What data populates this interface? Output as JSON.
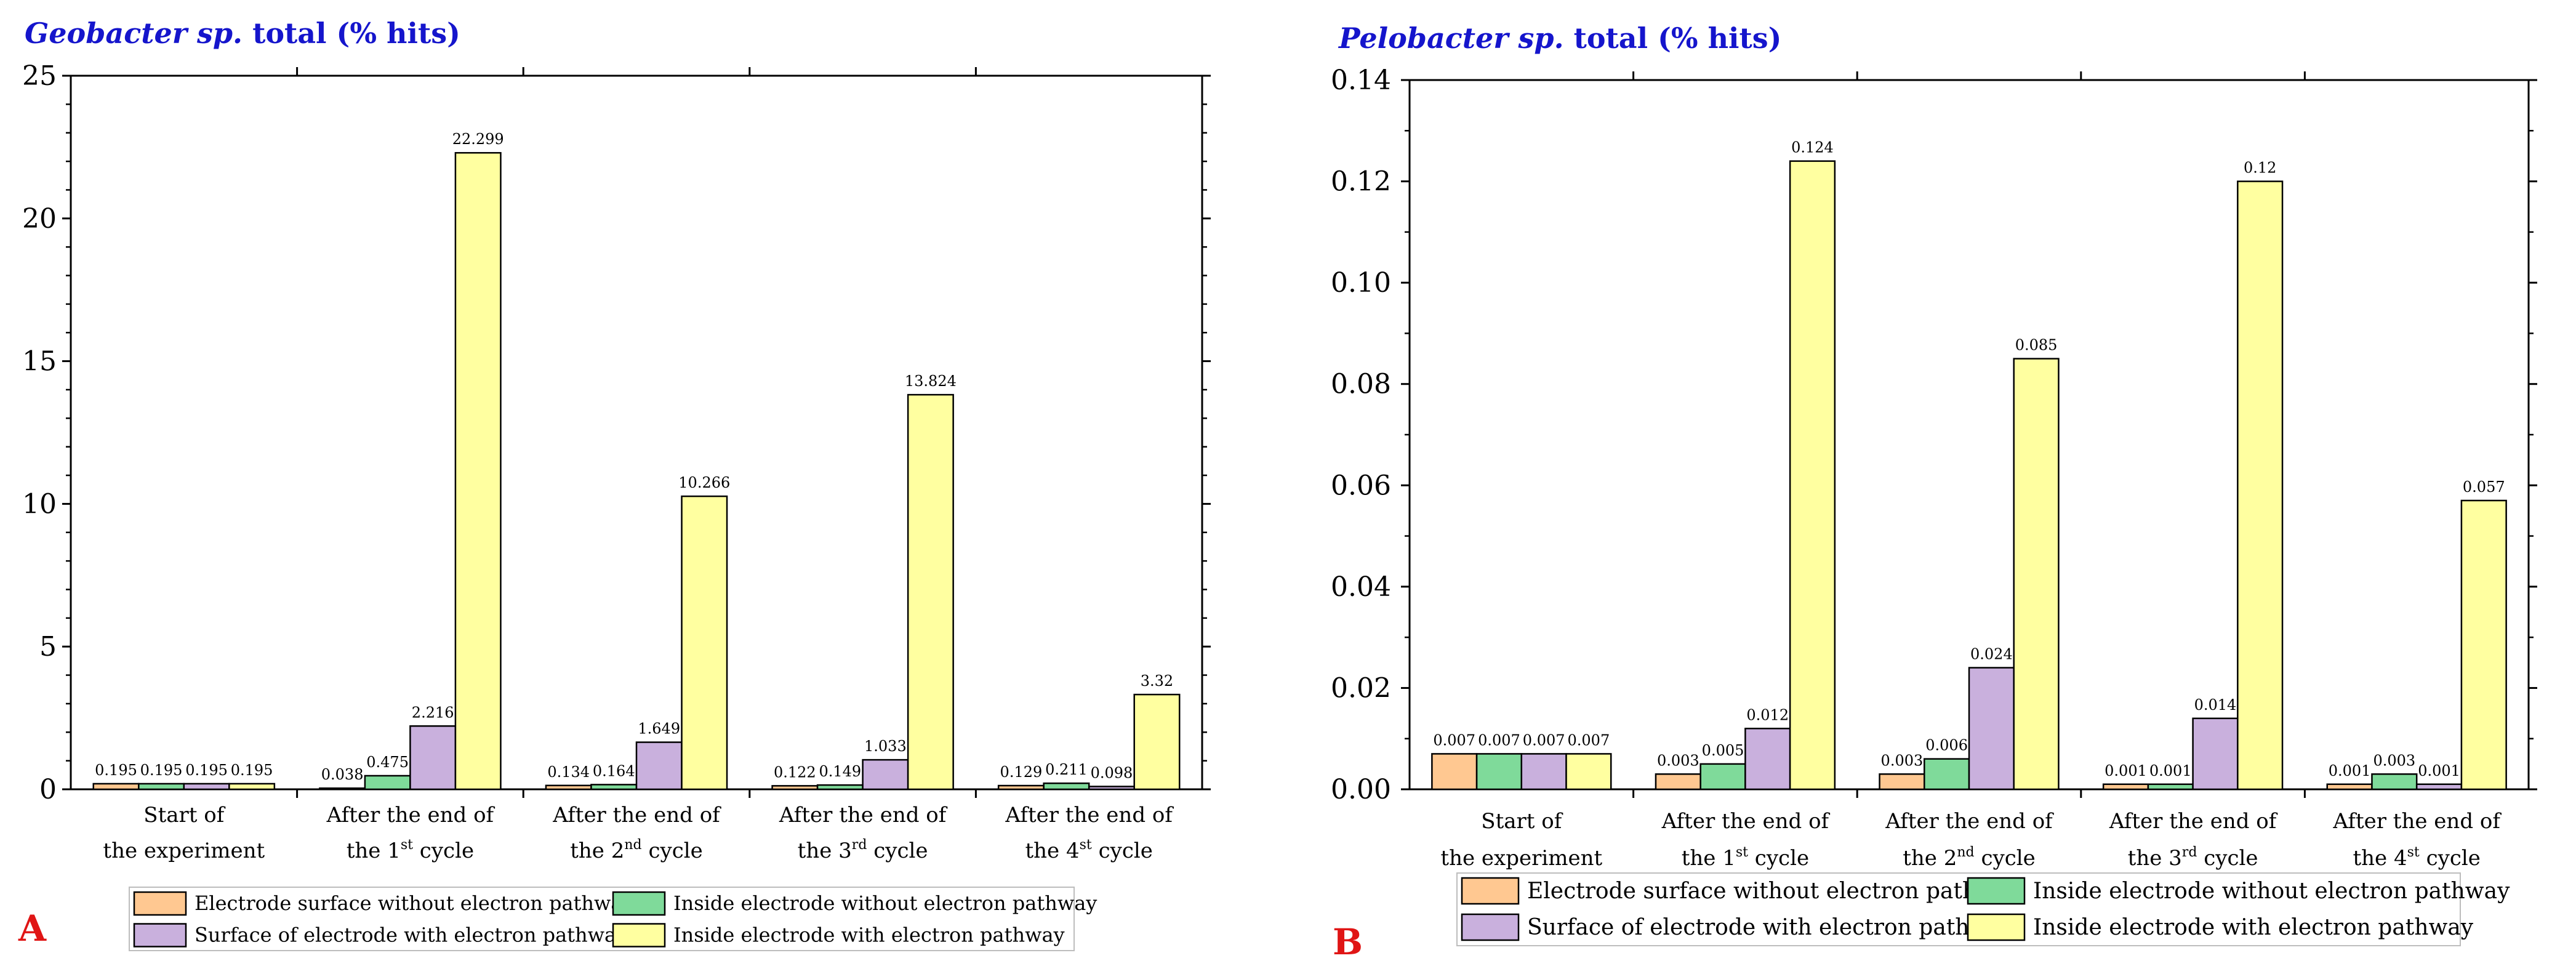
{
  "colors": {
    "series": [
      "#FFC891",
      "#7FDA9A",
      "#C9B0DD",
      "#FFFFA0"
    ],
    "title": "#1515CC",
    "panel_letter": "#E01515",
    "axis": "#000000"
  },
  "chart_data": [
    {
      "type": "bar",
      "panel": "A",
      "title_italic": "Geobacter sp.",
      "title_rest": " total (% hits)",
      "categories": [
        {
          "line1": "Start of",
          "line2_pre": "the experiment",
          "sup": "",
          "line2_post": ""
        },
        {
          "line1": "After the end of",
          "line2_pre": "the 1",
          "sup": "st",
          "line2_post": " cycle"
        },
        {
          "line1": "After the end of",
          "line2_pre": "the 2",
          "sup": "nd",
          "line2_post": " cycle"
        },
        {
          "line1": "After the end of",
          "line2_pre": "the 3",
          "sup": "rd",
          "line2_post": " cycle"
        },
        {
          "line1": "After the end of",
          "line2_pre": "the 4",
          "sup": "st",
          "line2_post": " cycle"
        }
      ],
      "series": [
        {
          "name": "Electrode surface without electron pathway",
          "values": [
            0.195,
            0.038,
            0.134,
            0.122,
            0.129
          ],
          "labels": [
            "0.195",
            "0.038",
            "0.134",
            "0.122",
            "0.129"
          ]
        },
        {
          "name": "Inside electrode without electron pathway",
          "values": [
            0.195,
            0.475,
            0.164,
            0.149,
            0.211
          ],
          "labels": [
            "0.195",
            "0.475",
            "0.164",
            "0.149",
            "0.211"
          ]
        },
        {
          "name": "Surface of electrode with electron pathway",
          "values": [
            0.195,
            2.216,
            1.649,
            1.033,
            0.098
          ],
          "labels": [
            "0.195",
            "2.216",
            "1.649",
            "1.033",
            "0.098"
          ]
        },
        {
          "name": "Inside electrode with electron pathway",
          "values": [
            0.195,
            22.299,
            10.266,
            13.824,
            3.32
          ],
          "labels": [
            "0.195",
            "22.299",
            "10.266",
            "13.824",
            "3.32"
          ]
        }
      ],
      "ylim": [
        0,
        25
      ],
      "yticks": [
        0,
        5,
        10,
        15,
        20,
        25
      ],
      "ytick_labels": [
        "0",
        "5",
        "10",
        "15",
        "20",
        "25"
      ],
      "xlabel": "",
      "ylabel": "",
      "legend_position": "bottom"
    },
    {
      "type": "bar",
      "panel": "B",
      "title_italic": "Pelobacter sp.",
      "title_rest": " total (% hits)",
      "categories": [
        {
          "line1": "Start of",
          "line2_pre": "the experiment",
          "sup": "",
          "line2_post": ""
        },
        {
          "line1": "After the end of",
          "line2_pre": "the 1",
          "sup": "st",
          "line2_post": " cycle"
        },
        {
          "line1": "After the end of",
          "line2_pre": "the 2",
          "sup": "nd",
          "line2_post": " cycle"
        },
        {
          "line1": "After the end of",
          "line2_pre": "the 3",
          "sup": "rd",
          "line2_post": " cycle"
        },
        {
          "line1": "After the end of",
          "line2_pre": "the 4",
          "sup": "st",
          "line2_post": " cycle"
        }
      ],
      "series": [
        {
          "name": "Electrode surface without electron pathway",
          "values": [
            0.007,
            0.003,
            0.003,
            0.001,
            0.001
          ],
          "labels": [
            "0.007",
            "0.003",
            "0.003",
            "0.001",
            "0.001"
          ]
        },
        {
          "name": "Inside electrode without electron pathway",
          "values": [
            0.007,
            0.005,
            0.006,
            0.001,
            0.003
          ],
          "labels": [
            "0.007",
            "0.005",
            "0.006",
            "0.001",
            "0.003"
          ]
        },
        {
          "name": "Surface of electrode with electron pathway",
          "values": [
            0.007,
            0.012,
            0.024,
            0.014,
            0.001
          ],
          "labels": [
            "0.007",
            "0.012",
            "0.024",
            "0.014",
            "0.001"
          ]
        },
        {
          "name": "Inside electrode with electron pathway",
          "values": [
            0.007,
            0.124,
            0.085,
            0.12,
            0.057
          ],
          "labels": [
            "0.007",
            "0.124",
            "0.085",
            "0.12",
            "0.057"
          ]
        }
      ],
      "ylim": [
        0,
        0.14
      ],
      "yticks": [
        0,
        0.02,
        0.04,
        0.06,
        0.08,
        0.1,
        0.12,
        0.14
      ],
      "ytick_labels": [
        "0.00",
        "0.02",
        "0.04",
        "0.06",
        "0.08",
        "0.10",
        "0.12",
        "0.14"
      ],
      "xlabel": "",
      "ylabel": "",
      "legend_position": "bottom"
    }
  ]
}
